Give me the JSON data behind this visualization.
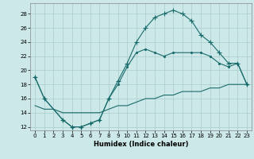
{
  "xlabel": "Humidex (Indice chaleur)",
  "xlim": [
    -0.5,
    23.5
  ],
  "ylim": [
    11.5,
    29.5
  ],
  "yticks": [
    12,
    14,
    16,
    18,
    20,
    22,
    24,
    26,
    28
  ],
  "xticks": [
    0,
    1,
    2,
    3,
    4,
    5,
    6,
    7,
    8,
    9,
    10,
    11,
    12,
    13,
    14,
    15,
    16,
    17,
    18,
    19,
    20,
    21,
    22,
    23
  ],
  "bg_color": "#cce8e8",
  "grid_color": "#aacccc",
  "line_color": "#1a6b6b",
  "line1_x": [
    0,
    1,
    2,
    3,
    4,
    5,
    6,
    7,
    8,
    9,
    10,
    11,
    12,
    13,
    14,
    15,
    16,
    17,
    18,
    19,
    20,
    21,
    22,
    23
  ],
  "line1_y": [
    15,
    14.5,
    14.5,
    14,
    14,
    14,
    14,
    14,
    14.5,
    15,
    15,
    15.5,
    16,
    16,
    16.5,
    16.5,
    17,
    17,
    17,
    17.5,
    17.5,
    18,
    18,
    18
  ],
  "line2_x": [
    0,
    1,
    3,
    4,
    5,
    6,
    7,
    8,
    9,
    10,
    11,
    12,
    13,
    14,
    15,
    17,
    18,
    19,
    20,
    21,
    22,
    23
  ],
  "line2_y": [
    19,
    16,
    13,
    12,
    12,
    12.5,
    13,
    16,
    18,
    20.5,
    22.5,
    23,
    22.5,
    22,
    22.5,
    22.5,
    22.5,
    22,
    21,
    20.5,
    21,
    18
  ],
  "line3_x": [
    0,
    1,
    3,
    4,
    5,
    6,
    7,
    8,
    9,
    10,
    11,
    12,
    13,
    14,
    15,
    16,
    17,
    18,
    19,
    20,
    21,
    22,
    23
  ],
  "line3_y": [
    19,
    16,
    13,
    12,
    12,
    12.5,
    13,
    16,
    18.5,
    21,
    24,
    26,
    27.5,
    28,
    28.5,
    28,
    27,
    25,
    24,
    22.5,
    21,
    21,
    18
  ]
}
